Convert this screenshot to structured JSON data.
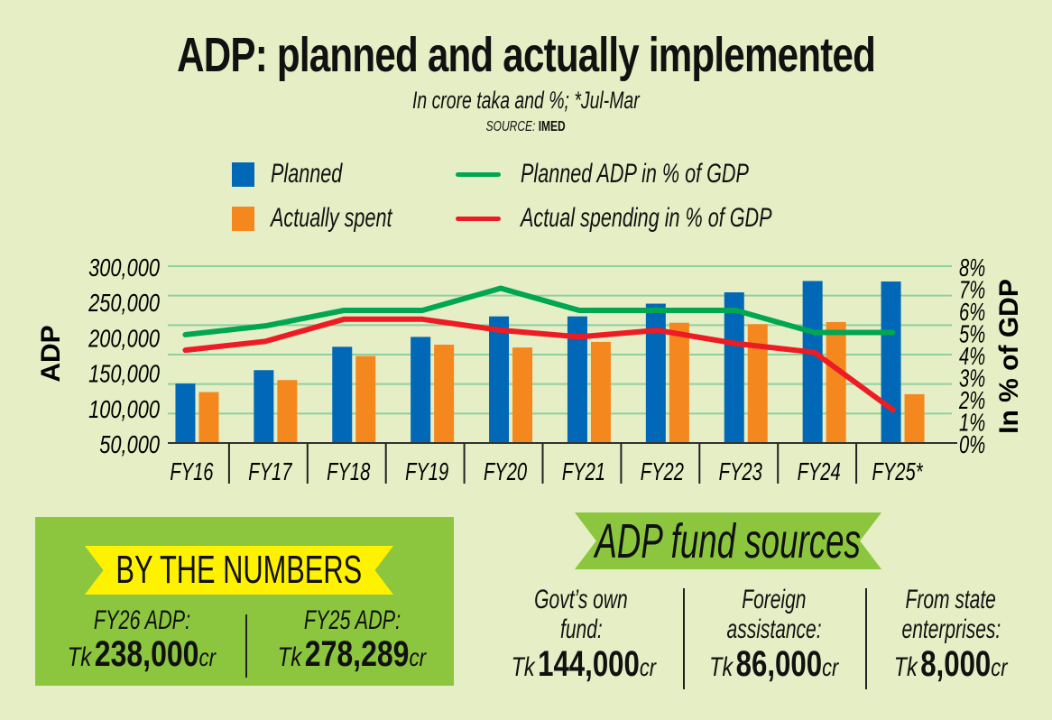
{
  "title": "ADP: planned and actually implemented",
  "subtitle": "In crore taka and %; *Jul-Mar",
  "source": {
    "label": "SOURCE:",
    "value": "IMED"
  },
  "colors": {
    "background": "#e5eec4",
    "planned": "#0068b7",
    "actual": "#f5871f",
    "planned_pct_line": "#00a651",
    "actual_pct_line": "#ed1c24",
    "gridline": "#8fd0a0",
    "box_green": "#8cc63f",
    "ribbon_yellow": "#fff200"
  },
  "legend": [
    {
      "label": "Planned",
      "kind": "bar",
      "key": "planned"
    },
    {
      "label": "Actually spent",
      "kind": "bar",
      "key": "actual"
    },
    {
      "label": "Planned ADP in % of GDP",
      "kind": "line",
      "key": "planned_pct_line"
    },
    {
      "label": "Actual spending in  % of GDP",
      "kind": "line",
      "key": "actual_pct_line"
    }
  ],
  "chart_data": {
    "type": "bar",
    "title": "ADP: planned and actually implemented",
    "subtitle": "In crore taka and %; *Jul-Mar",
    "categories": [
      "FY16",
      "FY17",
      "FY18",
      "FY19",
      "FY20",
      "FY21",
      "FY22",
      "FY23",
      "FY24",
      "FY25*"
    ],
    "ylabel": "ADP",
    "y2label": "In % of GDP",
    "ylim": [
      50000,
      300000
    ],
    "y2lim": [
      0,
      8
    ],
    "yticks": [
      "300,000",
      "250,000",
      "200,000",
      "150,000",
      "100,000",
      "50,000"
    ],
    "y2ticks": [
      "8%",
      "7%",
      "6%",
      "5%",
      "4%",
      "3%",
      "2%",
      "1%",
      "0%"
    ],
    "grid": true,
    "legend_position": "top",
    "series": [
      {
        "name": "Planned",
        "type": "bar",
        "axis": "left",
        "values": [
          134000,
          153000,
          186000,
          200000,
          229000,
          229000,
          247000,
          263000,
          279000,
          278289
        ]
      },
      {
        "name": "Actually spent",
        "type": "bar",
        "axis": "left",
        "values": [
          122000,
          139000,
          173000,
          189000,
          185000,
          193000,
          220000,
          218000,
          221000,
          119000
        ]
      },
      {
        "name": "Planned ADP in % of GDP",
        "type": "line",
        "axis": "right",
        "values": [
          4.9,
          5.3,
          6.0,
          6.0,
          7.0,
          6.0,
          6.0,
          6.0,
          5.0,
          5.0
        ]
      },
      {
        "name": "Actual spending in  % of GDP",
        "type": "line",
        "axis": "right",
        "values": [
          4.2,
          4.6,
          5.6,
          5.6,
          5.1,
          4.8,
          5.1,
          4.5,
          4.1,
          1.5
        ]
      }
    ]
  },
  "by_the_numbers": {
    "heading": "BY THE NUMBERS",
    "items": [
      {
        "label": "FY26 ADP:",
        "prefix": "Tk",
        "value": "238,000",
        "suffix": "cr"
      },
      {
        "label": "FY25 ADP:",
        "prefix": "Tk",
        "value": "278,289",
        "suffix": "cr"
      }
    ]
  },
  "fund_sources": {
    "heading": "ADP fund sources",
    "items": [
      {
        "label_line1": "Govt’s own",
        "label_line2": "fund:",
        "prefix": "Tk",
        "value": "144,000",
        "suffix": "cr"
      },
      {
        "label_line1": "Foreign",
        "label_line2": "assistance:",
        "prefix": "Tk",
        "value": "86,000",
        "suffix": "cr"
      },
      {
        "label_line1": "From state",
        "label_line2": "enterprises:",
        "prefix": "Tk",
        "value": "8,000",
        "suffix": "cr"
      }
    ]
  }
}
